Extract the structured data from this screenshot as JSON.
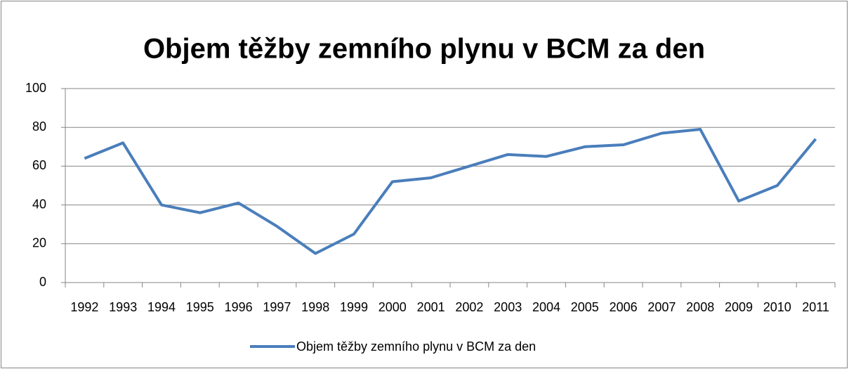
{
  "chart_data": {
    "type": "line",
    "title": "Objem těžby zemního plynu v BCM za den",
    "categories": [
      "1992",
      "1993",
      "1994",
      "1995",
      "1996",
      "1997",
      "1998",
      "1999",
      "2000",
      "2001",
      "2002",
      "2003",
      "2004",
      "2005",
      "2006",
      "2007",
      "2008",
      "2009",
      "2010",
      "2011"
    ],
    "series": [
      {
        "name": "Objem těžby zemního plynu v BCM za den",
        "color": "#4a7ebb",
        "values": [
          64,
          72,
          40,
          36,
          41,
          29,
          15,
          25,
          52,
          54,
          60,
          66,
          65,
          70,
          71,
          77,
          79,
          42,
          50,
          74
        ]
      }
    ],
    "ylim": [
      0,
      100
    ],
    "yticks": [
      0,
      20,
      40,
      60,
      80,
      100
    ],
    "grid": true,
    "legend": "bottom"
  }
}
